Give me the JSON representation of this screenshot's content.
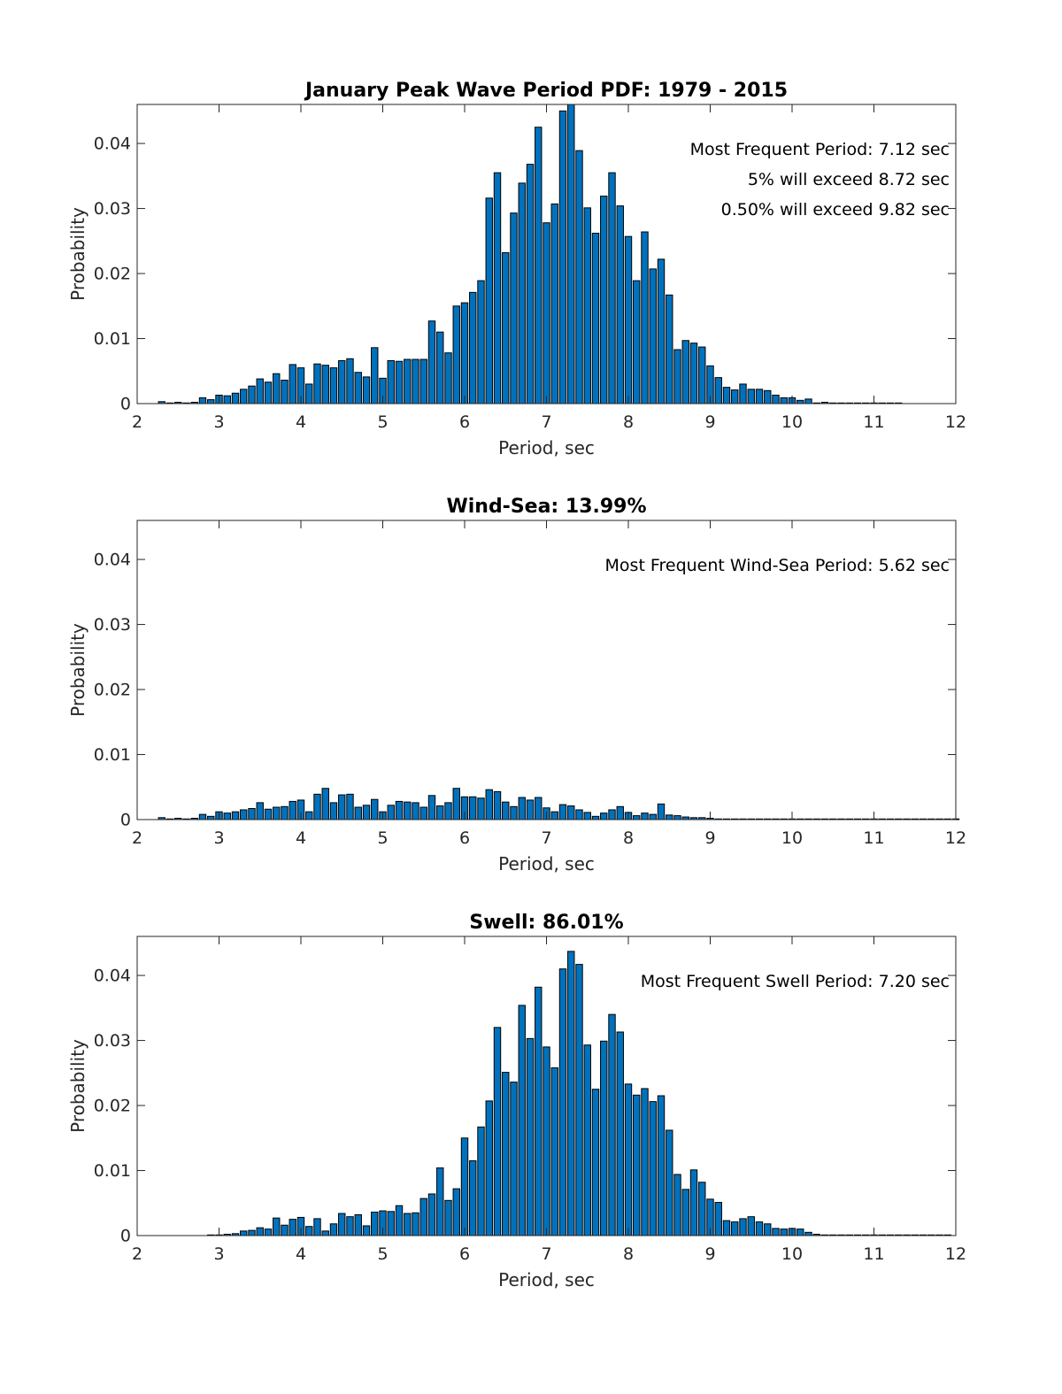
{
  "chart_data": [
    {
      "type": "bar",
      "title": "January Peak Wave Period PDF: 1979 - 2015",
      "xlabel": "Period, sec",
      "ylabel": "Probability",
      "xlim": [
        2,
        12
      ],
      "ylim": [
        0,
        0.046
      ],
      "xticks": [
        "2",
        "3",
        "4",
        "5",
        "6",
        "7",
        "8",
        "9",
        "10",
        "11",
        "12"
      ],
      "yticks": [
        "0",
        "0.01",
        "0.02",
        "0.03",
        "0.04"
      ],
      "bar_start": 2.3,
      "bar_step": 0.1,
      "annotations": [
        "Most Frequent Period: 7.12 sec",
        "5% will exceed 8.72 sec",
        "0.50% will exceed 9.82 sec"
      ],
      "values": [
        0.0003,
        0.0001,
        0.0002,
        0.0001,
        0.0002,
        0.0009,
        0.0006,
        0.0013,
        0.0012,
        0.0016,
        0.0022,
        0.0027,
        0.0038,
        0.0033,
        0.0046,
        0.0036,
        0.006,
        0.0055,
        0.003,
        0.0061,
        0.0059,
        0.0055,
        0.0066,
        0.0069,
        0.0048,
        0.0041,
        0.0086,
        0.0039,
        0.0066,
        0.0065,
        0.0068,
        0.0068,
        0.0068,
        0.0127,
        0.011,
        0.0078,
        0.015,
        0.0155,
        0.0171,
        0.0189,
        0.0316,
        0.0355,
        0.0232,
        0.0293,
        0.0339,
        0.0368,
        0.0425,
        0.0278,
        0.0307,
        0.045,
        0.046,
        0.0389,
        0.0301,
        0.0262,
        0.0319,
        0.0355,
        0.0304,
        0.0257,
        0.0189,
        0.0264,
        0.0207,
        0.0222,
        0.0167,
        0.0083,
        0.0097,
        0.0093,
        0.0087,
        0.0058,
        0.004,
        0.0025,
        0.0021,
        0.003,
        0.0022,
        0.0022,
        0.002,
        0.0013,
        0.0009,
        0.0009,
        0.0005,
        0.0007,
        0.0001,
        0.0002,
        0.0001,
        0.0001,
        0.0001,
        0.0001,
        0.0001,
        0.0001,
        0.0001,
        0.0001,
        0.0001
      ]
    },
    {
      "type": "bar",
      "title": "Wind-Sea: 13.99%",
      "xlabel": "Period, sec",
      "ylabel": "Probability",
      "xlim": [
        2,
        12
      ],
      "ylim": [
        0,
        0.046
      ],
      "xticks": [
        "2",
        "3",
        "4",
        "5",
        "6",
        "7",
        "8",
        "9",
        "10",
        "11",
        "12"
      ],
      "yticks": [
        "0",
        "0.01",
        "0.02",
        "0.03",
        "0.04"
      ],
      "bar_start": 2.3,
      "bar_step": 0.1,
      "annotations": [
        "Most Frequent Wind-Sea Period: 5.62 sec"
      ],
      "values": [
        0.0003,
        0.0001,
        0.0002,
        0.0001,
        0.0002,
        0.0008,
        0.0005,
        0.0012,
        0.001,
        0.0012,
        0.0015,
        0.0017,
        0.0026,
        0.0016,
        0.0019,
        0.002,
        0.0028,
        0.003,
        0.0012,
        0.0039,
        0.0048,
        0.0026,
        0.0038,
        0.0039,
        0.0019,
        0.0022,
        0.0031,
        0.0012,
        0.0022,
        0.0028,
        0.0027,
        0.0026,
        0.0019,
        0.0037,
        0.0021,
        0.0026,
        0.0048,
        0.0035,
        0.0035,
        0.0033,
        0.0046,
        0.0043,
        0.0027,
        0.002,
        0.0034,
        0.003,
        0.0034,
        0.0018,
        0.0012,
        0.0023,
        0.0021,
        0.0015,
        0.0011,
        0.0005,
        0.001,
        0.0015,
        0.002,
        0.0011,
        0.0006,
        0.001,
        0.0008,
        0.0024,
        0.0007,
        0.0006,
        0.0004,
        0.0003,
        0.0003,
        0.0002,
        0.0001,
        0.0001,
        0.0001,
        0.0001,
        0.0001,
        0.0001,
        0.0001,
        0.0001,
        0.0001,
        0.0001,
        0.0001,
        0.0001,
        0.0001,
        0.0001,
        0.0001,
        0.0001,
        0.0001,
        0.0001,
        0.0001,
        0.0001,
        0.0001,
        0.0001,
        0.0001,
        0.0001,
        0.0001,
        0.0001,
        0.0001,
        0.0001,
        0.0001,
        0.0001
      ]
    },
    {
      "type": "bar",
      "title": "Swell: 86.01%",
      "xlabel": "Period, sec",
      "ylabel": "Probability",
      "xlim": [
        2,
        12
      ],
      "ylim": [
        0,
        0.046
      ],
      "xticks": [
        "2",
        "3",
        "4",
        "5",
        "6",
        "7",
        "8",
        "9",
        "10",
        "11",
        "12"
      ],
      "yticks": [
        "0",
        "0.01",
        "0.02",
        "0.03",
        "0.04"
      ],
      "bar_start": 2.9,
      "bar_step": 0.1,
      "annotations": [
        "Most Frequent Swell Period: 7.20 sec"
      ],
      "values": [
        0.0001,
        0.0001,
        0.0002,
        0.0003,
        0.0007,
        0.0008,
        0.0012,
        0.001,
        0.0027,
        0.0016,
        0.0025,
        0.0028,
        0.0014,
        0.0026,
        0.0007,
        0.0018,
        0.0034,
        0.0029,
        0.0032,
        0.0015,
        0.0036,
        0.0038,
        0.0037,
        0.0046,
        0.0034,
        0.0035,
        0.0057,
        0.0064,
        0.0104,
        0.0054,
        0.0072,
        0.015,
        0.0115,
        0.0167,
        0.0207,
        0.032,
        0.0251,
        0.0236,
        0.0354,
        0.0303,
        0.0382,
        0.029,
        0.0258,
        0.041,
        0.0437,
        0.0417,
        0.0293,
        0.0225,
        0.0299,
        0.034,
        0.0313,
        0.0233,
        0.0216,
        0.0226,
        0.0206,
        0.0215,
        0.0162,
        0.0094,
        0.0071,
        0.0101,
        0.0082,
        0.0056,
        0.0051,
        0.0023,
        0.0021,
        0.0026,
        0.0029,
        0.0021,
        0.0018,
        0.0011,
        0.001,
        0.0011,
        0.001,
        0.0005,
        0.0002,
        0.0001,
        0.0001,
        0.0001,
        0.0001,
        0.0001,
        0.0001,
        0.0001,
        0.0001,
        0.0001,
        0.0001,
        0.0001,
        0.0001,
        0.0001,
        0.0001,
        0.0001,
        0.0001
      ]
    }
  ]
}
